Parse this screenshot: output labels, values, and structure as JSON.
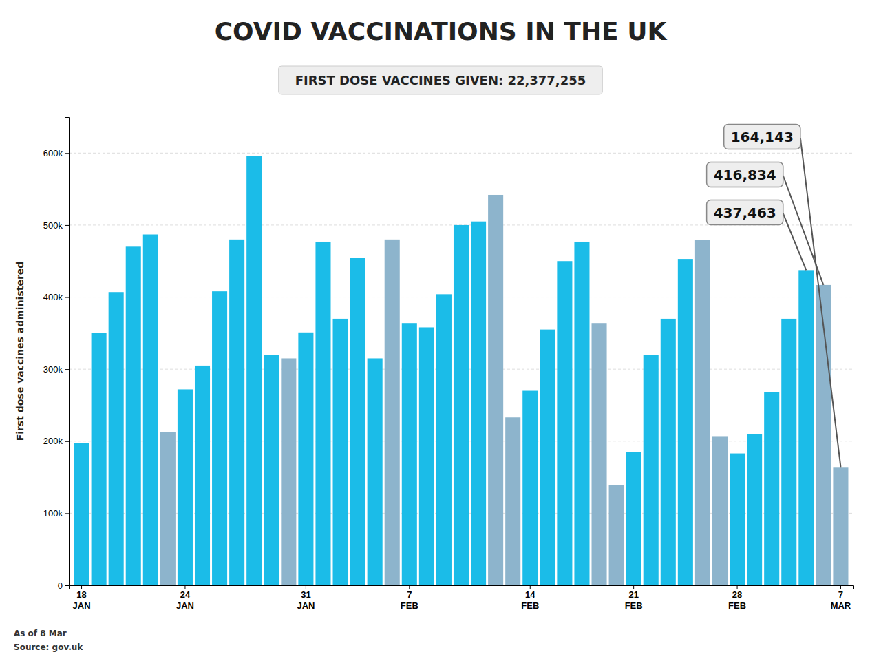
{
  "chart_data": {
    "type": "bar",
    "title": "COVID VACCINATIONS IN THE UK",
    "subtitle": "FIRST DOSE VACCINES GIVEN: 22,377,255",
    "ylabel": "First dose vaccines administered",
    "source": [
      "As of 8 Mar",
      "Source: gov.uk"
    ],
    "categories": [
      "18\nJAN",
      null,
      null,
      null,
      null,
      null,
      "24\nJAN",
      null,
      null,
      null,
      null,
      null,
      null,
      "31\nJAN",
      null,
      null,
      null,
      null,
      null,
      "7\nFEB",
      null,
      null,
      null,
      null,
      null,
      null,
      "14\nFEB",
      null,
      null,
      null,
      null,
      null,
      "21\nFEB",
      null,
      null,
      null,
      null,
      null,
      "28\nFEB",
      null,
      null,
      null,
      null,
      null,
      "7\nMAR"
    ],
    "values": [
      197000,
      350000,
      407000,
      470000,
      487000,
      213000,
      272000,
      305000,
      408000,
      480000,
      596000,
      320000,
      315000,
      351000,
      477000,
      370000,
      455000,
      315000,
      480000,
      364000,
      358000,
      404000,
      500000,
      505000,
      542000,
      233000,
      270000,
      355000,
      450000,
      477000,
      364000,
      139000,
      185000,
      320000,
      370000,
      453000,
      479000,
      207000,
      183000,
      210000,
      268000,
      370000,
      437463,
      416834,
      164143
    ],
    "colors": [
      "#1bbce8",
      "#1bbce8",
      "#1bbce8",
      "#1bbce8",
      "#1bbce8",
      "#8db4cc",
      "#1bbce8",
      "#1bbce8",
      "#1bbce8",
      "#1bbce8",
      "#1bbce8",
      "#1bbce8",
      "#8db4cc",
      "#1bbce8",
      "#1bbce8",
      "#1bbce8",
      "#1bbce8",
      "#1bbce8",
      "#8db4cc",
      "#1bbce8",
      "#1bbce8",
      "#1bbce8",
      "#1bbce8",
      "#1bbce8",
      "#8db4cc",
      "#8db4cc",
      "#1bbce8",
      "#1bbce8",
      "#1bbce8",
      "#1bbce8",
      "#8db4cc",
      "#8db4cc",
      "#1bbce8",
      "#1bbce8",
      "#1bbce8",
      "#1bbce8",
      "#8db4cc",
      "#8db4cc",
      "#1bbce8",
      "#1bbce8",
      "#1bbce8",
      "#1bbce8",
      "#1bbce8",
      "#8db4cc",
      "#8db4cc"
    ],
    "ylim": [
      0,
      650000
    ],
    "yticks": [
      0,
      {
        "value": 100000,
        "label": "100k"
      },
      {
        "value": 200000,
        "label": "200k"
      },
      {
        "value": 300000,
        "label": "300k"
      },
      {
        "value": 400000,
        "label": "400k"
      },
      {
        "value": 500000,
        "label": "500k"
      },
      {
        "value": 600000,
        "label": "600k"
      }
    ],
    "grid": true,
    "annotations": [
      {
        "text": "437,463",
        "value": 437463
      },
      {
        "text": "416,834",
        "value": 416834
      },
      {
        "text": "164,143",
        "value": 164143
      }
    ]
  }
}
